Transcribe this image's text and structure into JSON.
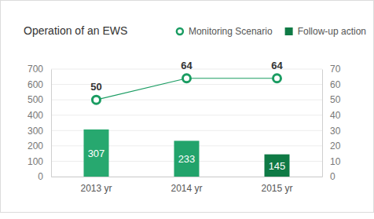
{
  "chart_data": {
    "type": "bar",
    "title": "Operation of an EWS",
    "categories": [
      "2013 yr",
      "2014 yr",
      "2015 yr"
    ],
    "series": [
      {
        "name": "Monitoring Scenario",
        "type": "line",
        "axis": "y2",
        "color": "#1a9c62",
        "marker": "circle",
        "values": [
          50,
          64,
          64
        ]
      },
      {
        "name": "Follow-up action",
        "type": "bar",
        "color": "#0f7a45",
        "colors": [
          "#27a86f",
          "#22a36b",
          "#0f7a45"
        ],
        "values": [
          307,
          233,
          145
        ]
      }
    ],
    "ylim": [
      0,
      700
    ],
    "yticks": [
      0,
      100,
      200,
      300,
      400,
      500,
      600,
      700
    ],
    "y2lim": [
      0,
      70
    ],
    "y2ticks": [
      0,
      10,
      20,
      30,
      40,
      50,
      60,
      70
    ],
    "grid": true,
    "legend": "top-right",
    "data_labels": true
  }
}
